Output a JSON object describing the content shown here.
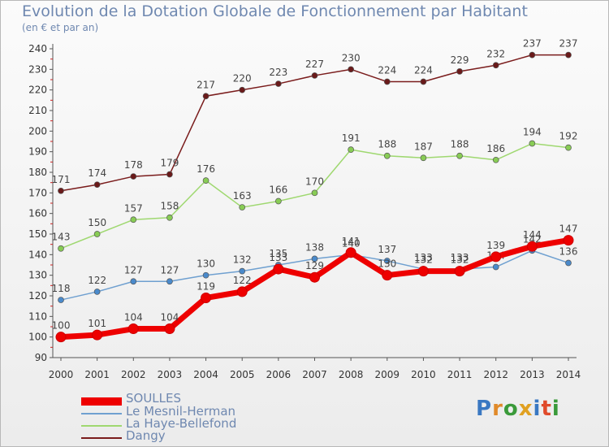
{
  "title": "Evolution de la Dotation Globale de Fonctionnement par Habitant",
  "subtitle": "(en € et par an)",
  "logo": {
    "letters": [
      "P",
      "r",
      "o",
      "x",
      "i",
      "t",
      "i"
    ],
    "colors": [
      "#3a78c2",
      "#e08a2a",
      "#3a9a3a",
      "#e0a020",
      "#3a78c2",
      "#e04a2a",
      "#3a9a3a"
    ]
  },
  "chart_data": {
    "type": "line",
    "x": [
      "2000",
      "2001",
      "2002",
      "2003",
      "2004",
      "2005",
      "2006",
      "2007",
      "2008",
      "2009",
      "2010",
      "2011",
      "2012",
      "2013",
      "2014"
    ],
    "ylim": [
      90,
      240
    ],
    "yticks": [
      90,
      100,
      110,
      120,
      130,
      140,
      150,
      160,
      170,
      180,
      190,
      200,
      210,
      220,
      230,
      240
    ],
    "grid": false,
    "legend": "bottom-left",
    "series": [
      {
        "name": "Dangy",
        "color": "#7a1c1c",
        "marker": "#6a1a1a",
        "values": [
          171,
          174,
          178,
          179,
          217,
          220,
          223,
          227,
          230,
          224,
          224,
          229,
          232,
          237,
          237
        ]
      },
      {
        "name": "La Haye-Bellefond",
        "color": "#9fd870",
        "marker": "#88cc55",
        "values": [
          143,
          150,
          157,
          158,
          176,
          163,
          166,
          170,
          191,
          188,
          187,
          188,
          186,
          194,
          192
        ]
      },
      {
        "name": "Le Mesnil-Herman",
        "color": "#6fa0d0",
        "marker": "#4a8acb",
        "values": [
          118,
          122,
          127,
          127,
          130,
          132,
          135,
          138,
          140,
          137,
          133,
          133,
          134,
          142,
          136
        ]
      },
      {
        "name": "SOULLES",
        "color": "#ee0000",
        "marker": "#ee0000",
        "values": [
          100,
          101,
          104,
          104,
          119,
          122,
          133,
          129,
          141,
          130,
          132,
          132,
          139,
          144,
          147
        ]
      }
    ]
  }
}
